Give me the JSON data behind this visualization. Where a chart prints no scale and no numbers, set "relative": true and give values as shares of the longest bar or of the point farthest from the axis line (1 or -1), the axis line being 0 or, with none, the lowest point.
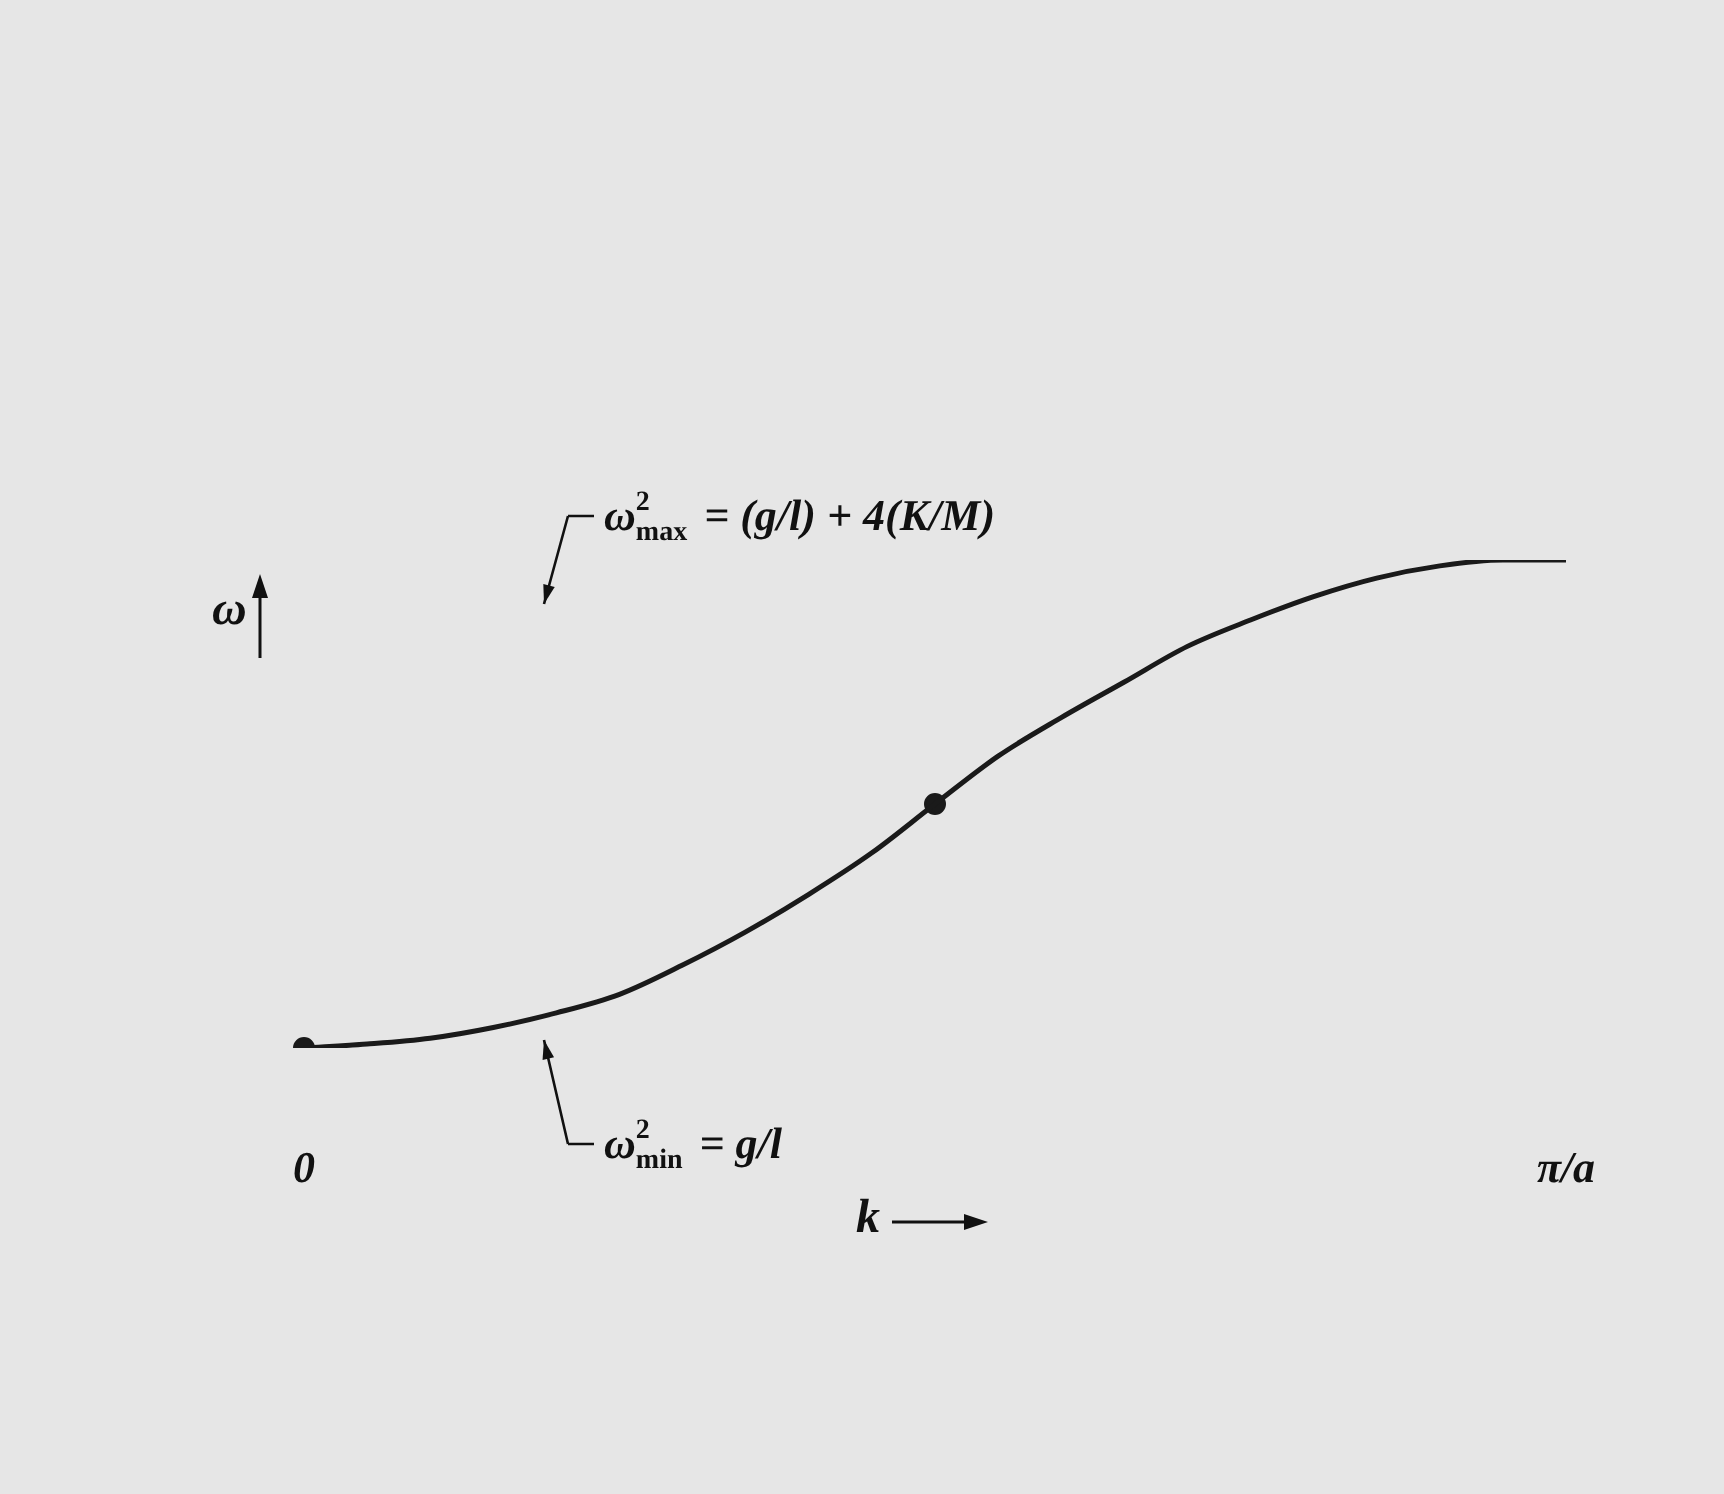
{
  "chart_data": {
    "type": "line",
    "relative": true,
    "xlabel": "k",
    "ylabel": "ω",
    "categories": [
      "0",
      null,
      null,
      null,
      null,
      null,
      null,
      null,
      null,
      null,
      null,
      null,
      null,
      null,
      null,
      null,
      null,
      null,
      null,
      null,
      "π/a"
    ],
    "grid": false,
    "legend": false,
    "series": [
      {
        "color": "#1a1a1a",
        "marker": "none",
        "values": [
          0,
          0.008,
          0.02,
          0.042,
          0.072,
          0.11,
          0.17,
          0.238,
          0.315,
          0.4,
          0.5,
          0.598,
          0.677,
          0.75,
          0.823,
          0.877,
          0.925,
          0.963,
          0.988,
          1,
          1
        ]
      },
      {
        "type": "scatter",
        "color": "#1a1a1a",
        "marker": "circle",
        "values": [
          0,
          null,
          null,
          null,
          null,
          null,
          null,
          null,
          null,
          null,
          0.5,
          null,
          null,
          null,
          null,
          null,
          null,
          null,
          null,
          null,
          null
        ]
      }
    ],
    "annotations": [
      "ω$^{2}$$_{max}$ = (g/l) + 4(K/M)",
      "ω$^{2}$$_{min}$ = g/l"
    ]
  }
}
